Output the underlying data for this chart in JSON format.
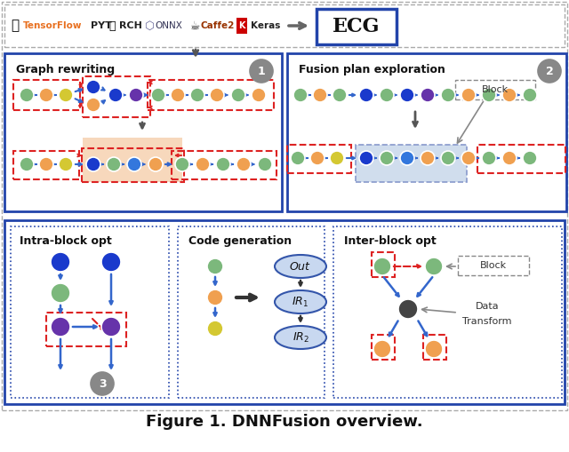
{
  "title": "Figure 1. DNNFusion overview.",
  "bg_color": "#ffffff",
  "ecg_text": "ECG",
  "section1_title": "Graph rewriting",
  "section2_title": "Fusion plan exploration",
  "section3_title": "Intra-block opt",
  "section4_title": "Code generation",
  "section5_title": "Inter-block opt",
  "arrow_color": "#3366cc",
  "red_dash_color": "#dd2222",
  "blue_box_color": "#2244aa",
  "gray_color": "#888888",
  "dark_arrow_color": "#555555",
  "node_green": "#7cb87c",
  "node_orange": "#f0a050",
  "node_yellow": "#d4c832",
  "node_blue_dark": "#1a3acc",
  "node_blue_med": "#3377dd",
  "node_purple": "#6633aa",
  "node_dark": "#444444",
  "pink_fill": "#f5c8a0",
  "blue_fill": "#b8cce4",
  "ellipse_fill": "#c8d8f0",
  "ellipse_edge": "#3355aa"
}
